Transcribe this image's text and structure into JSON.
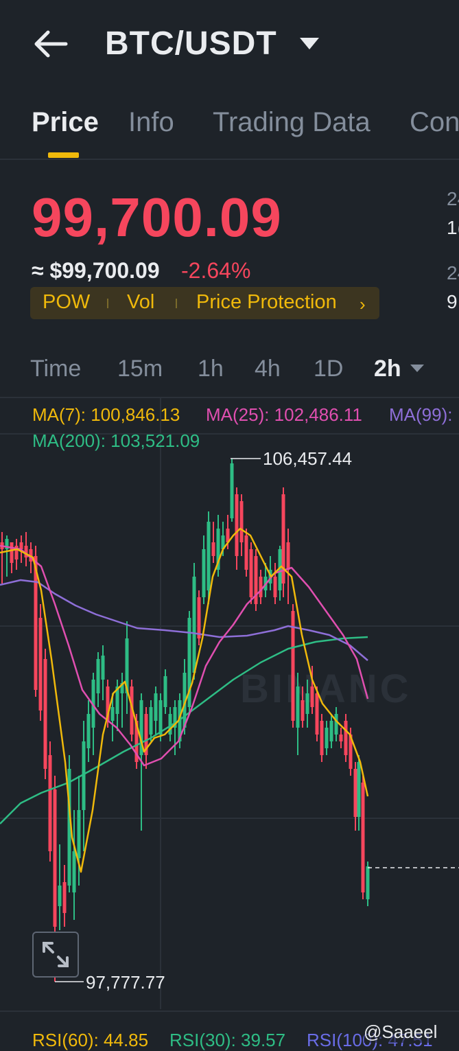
{
  "header": {
    "back_icon": "arrow-left-icon",
    "pair": "BTC/USDT",
    "caret_icon": "caret-down-icon"
  },
  "tabs": [
    {
      "label": "Price",
      "active": true
    },
    {
      "label": "Info"
    },
    {
      "label": "Trading Data"
    },
    {
      "label": "Con"
    }
  ],
  "price": {
    "last": "99,700.09",
    "approx": "≈ $99,700.09",
    "change": "-2.64%",
    "side_label_1": "24",
    "side_value_1": "1(",
    "side_label_2": "24",
    "side_value_2": "9!"
  },
  "tags": {
    "pow": "POW",
    "vol": "Vol",
    "protection": "Price Protection",
    "chevron": "›"
  },
  "intervals": {
    "time": "Time",
    "m15": "15m",
    "h1": "1h",
    "h4": "4h",
    "d1": "1D",
    "h2": "2h"
  },
  "ma": {
    "ma7": "MA(7): 100,846.13",
    "ma25": "MA(25): 102,486.11",
    "ma99": "MA(99):",
    "ma200": "MA(200): 103,521.09"
  },
  "chart_data": {
    "type": "candlestick",
    "high_label": "106,457.44",
    "low_label": "97,777.77",
    "watermark": "BINANC",
    "colors": {
      "up": "#2ebd85",
      "down": "#f6465d",
      "ma7": "#f0b90b",
      "ma25": "#e04fb0",
      "ma99": "#8e6fd8",
      "ma200": "#2ebd85"
    }
  },
  "rsi": {
    "rsi60": "RSI(60): 44.85",
    "rsi30": "RSI(30): 39.57",
    "rsi100": "RSI(100): 47.51"
  },
  "credit": "@Saaeel"
}
